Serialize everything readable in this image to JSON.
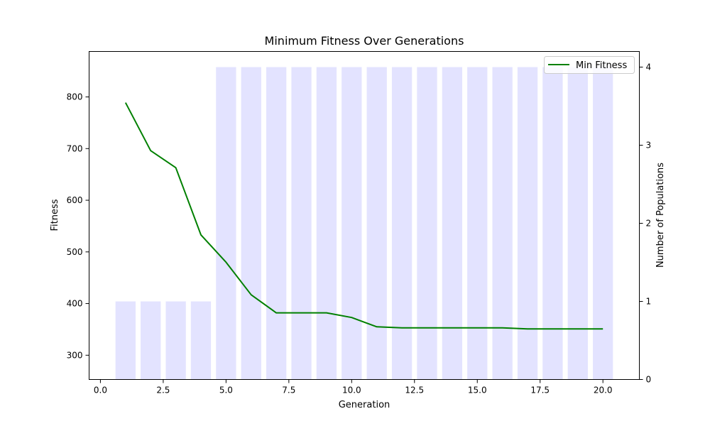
{
  "chart_data": {
    "type": "bar+line",
    "title": "Minimum Fitness Over Generations",
    "xlabel": "Generation",
    "ylabel_left": "Fitness",
    "ylabel_right": "Number of Populations",
    "xlim": [
      -0.45,
      21.45
    ],
    "ylim_left": [
      253,
      888
    ],
    "ylim_right": [
      0,
      4.2
    ],
    "grid": false,
    "legend_position": "upper right",
    "x_ticks": [
      0.0,
      2.5,
      5.0,
      7.5,
      10.0,
      12.5,
      15.0,
      17.5,
      20.0
    ],
    "x_tick_labels": [
      "0.0",
      "2.5",
      "5.0",
      "7.5",
      "10.0",
      "12.5",
      "15.0",
      "17.5",
      "20.0"
    ],
    "y_left_ticks": [
      300,
      400,
      500,
      600,
      700,
      800
    ],
    "y_left_tick_labels": [
      "300",
      "400",
      "500",
      "600",
      "700",
      "800"
    ],
    "y_right_ticks": [
      0,
      1,
      2,
      3,
      4
    ],
    "y_right_tick_labels": [
      "0",
      "1",
      "2",
      "3",
      "4"
    ],
    "generations": [
      1,
      2,
      3,
      4,
      5,
      6,
      7,
      8,
      9,
      10,
      11,
      12,
      13,
      14,
      15,
      16,
      17,
      18,
      19,
      20
    ],
    "series": [
      {
        "name": "Min Fitness",
        "type": "line",
        "axis": "left",
        "color": "#008000",
        "values": [
          789,
          696,
          663,
          533,
          480,
          417,
          382,
          382,
          382,
          373,
          355,
          353,
          353,
          353,
          353,
          353,
          351,
          351,
          351,
          351
        ]
      },
      {
        "name": "Number of Populations",
        "type": "bar",
        "axis": "right",
        "color": "#e3e3ff",
        "values": [
          1,
          1,
          1,
          1,
          4,
          4,
          4,
          4,
          4,
          4,
          4,
          4,
          4,
          4,
          4,
          4,
          4,
          4,
          4,
          4
        ]
      }
    ]
  }
}
